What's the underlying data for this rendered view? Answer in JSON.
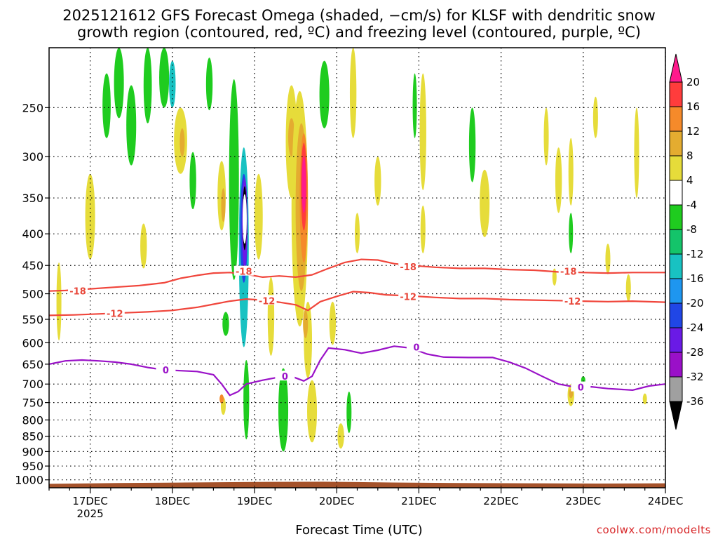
{
  "title": {
    "line1": "2025121612 GFS Forecast Omega (shaded, −cm/s) for KLSF with dendritic snow",
    "line2": "growth region (contoured, red, ºC) and freezing level (contoured, purple, ºC)"
  },
  "xlabel": "Forecast Time (UTC)",
  "credit": "coolwx.com/modelts",
  "chart_data": {
    "type": "heatmap",
    "x_axis": {
      "ticks": [
        {
          "label": "17DEC",
          "sublabel": "2025",
          "day": 17
        },
        {
          "label": "18DEC",
          "day": 18
        },
        {
          "label": "19DEC",
          "day": 19
        },
        {
          "label": "20DEC",
          "day": 20
        },
        {
          "label": "21DEC",
          "day": 21
        },
        {
          "label": "22DEC",
          "day": 22
        },
        {
          "label": "23DEC",
          "day": 23
        },
        {
          "label": "24DEC",
          "day": 24
        }
      ],
      "range_days": [
        16.5,
        24.0
      ]
    },
    "y_axis": {
      "label": "",
      "scale": "log-pressure",
      "inverted": true,
      "range_hpa": [
        200,
        1030
      ],
      "ticks": [
        250,
        300,
        350,
        400,
        450,
        500,
        550,
        600,
        650,
        700,
        750,
        800,
        850,
        900,
        950,
        1000
      ]
    },
    "colorbar": {
      "labels": [
        "20",
        "16",
        "12",
        "8",
        "4",
        "-4",
        "-8",
        "-12",
        "-16",
        "-20",
        "-24",
        "-28",
        "-32",
        "-36"
      ],
      "levels": [
        {
          "lo": 20,
          "hi": 24,
          "color": "#ff1a8c"
        },
        {
          "lo": 16,
          "hi": 20,
          "color": "#ff3c3c"
        },
        {
          "lo": 12,
          "hi": 16,
          "color": "#f58a2a"
        },
        {
          "lo": 8,
          "hi": 12,
          "color": "#e4ac30"
        },
        {
          "lo": 4,
          "hi": 8,
          "color": "#e6dc3a"
        },
        {
          "lo": -4,
          "hi": 4,
          "color": "#ffffff"
        },
        {
          "lo": -8,
          "hi": -4,
          "color": "#1fcc1f"
        },
        {
          "lo": -12,
          "hi": -8,
          "color": "#14c46a"
        },
        {
          "lo": -16,
          "hi": -12,
          "color": "#18c2c2"
        },
        {
          "lo": -20,
          "hi": -16,
          "color": "#1e96f0"
        },
        {
          "lo": -24,
          "hi": -20,
          "color": "#2046e6"
        },
        {
          "lo": -28,
          "hi": -24,
          "color": "#6a1ae6"
        },
        {
          "lo": -32,
          "hi": -28,
          "color": "#9a10c8"
        },
        {
          "lo": -36,
          "hi": -32,
          "color": "#a0a0a0"
        },
        {
          "lo": -40,
          "hi": -36,
          "color": "#000000"
        }
      ]
    },
    "omega_blobs": [
      {
        "x": 16.62,
        "p": 520,
        "w": 0.03,
        "h": 150,
        "color": "#e6dc3a"
      },
      {
        "x": 17.0,
        "p": 380,
        "w": 0.06,
        "h": 120,
        "color": "#e6dc3a"
      },
      {
        "x": 17.2,
        "p": 250,
        "w": 0.05,
        "h": 60,
        "color": "#1fcc1f"
      },
      {
        "x": 17.35,
        "p": 230,
        "w": 0.06,
        "h": 60,
        "color": "#1fcc1f"
      },
      {
        "x": 17.5,
        "p": 270,
        "w": 0.06,
        "h": 80,
        "color": "#1fcc1f"
      },
      {
        "x": 17.65,
        "p": 420,
        "w": 0.04,
        "h": 70,
        "color": "#e6dc3a"
      },
      {
        "x": 17.7,
        "p": 230,
        "w": 0.05,
        "h": 70,
        "color": "#1fcc1f"
      },
      {
        "x": 17.9,
        "p": 225,
        "w": 0.06,
        "h": 50,
        "color": "#1fcc1f"
      },
      {
        "x": 18.1,
        "p": 285,
        "w": 0.08,
        "h": 70,
        "color": "#e6dc3a"
      },
      {
        "x": 18.12,
        "p": 285,
        "w": 0.03,
        "h": 30,
        "color": "#e4ac30"
      },
      {
        "x": 18.0,
        "p": 230,
        "w": 0.04,
        "h": 40,
        "color": "#18c2c2"
      },
      {
        "x": 18.25,
        "p": 330,
        "w": 0.04,
        "h": 70,
        "color": "#1fcc1f"
      },
      {
        "x": 18.45,
        "p": 230,
        "w": 0.04,
        "h": 45,
        "color": "#1fcc1f"
      },
      {
        "x": 18.6,
        "p": 350,
        "w": 0.05,
        "h": 90,
        "color": "#e6dc3a"
      },
      {
        "x": 18.62,
        "p": 360,
        "w": 0.025,
        "h": 45,
        "color": "#e4ac30"
      },
      {
        "x": 18.65,
        "p": 560,
        "w": 0.04,
        "h": 50,
        "color": "#1fcc1f"
      },
      {
        "x": 18.62,
        "p": 760,
        "w": 0.03,
        "h": 50,
        "color": "#e6dc3a"
      },
      {
        "x": 18.6,
        "p": 740,
        "w": 0.015,
        "h": 25,
        "color": "#f58a2a"
      },
      {
        "x": 18.75,
        "p": 350,
        "w": 0.06,
        "h": 250,
        "color": "#1fcc1f"
      },
      {
        "x": 18.87,
        "p": 450,
        "w": 0.06,
        "h": 320,
        "color": "#18c2c2"
      },
      {
        "x": 18.87,
        "p": 400,
        "w": 0.045,
        "h": 160,
        "color": "#2046e6"
      },
      {
        "x": 18.88,
        "p": 390,
        "w": 0.035,
        "h": 130,
        "color": "#6a1ae6"
      },
      {
        "x": 18.88,
        "p": 380,
        "w": 0.02,
        "h": 90,
        "color": "#000000"
      },
      {
        "x": 18.88,
        "p": 380,
        "w": 0.008,
        "h": 70,
        "color": "#ffffff"
      },
      {
        "x": 18.9,
        "p": 750,
        "w": 0.035,
        "h": 220,
        "color": "#1fcc1f"
      },
      {
        "x": 19.05,
        "p": 380,
        "w": 0.05,
        "h": 120,
        "color": "#e6dc3a"
      },
      {
        "x": 19.2,
        "p": 550,
        "w": 0.04,
        "h": 160,
        "color": "#e6dc3a"
      },
      {
        "x": 19.35,
        "p": 780,
        "w": 0.06,
        "h": 240,
        "color": "#1fcc1f"
      },
      {
        "x": 19.45,
        "p": 290,
        "w": 0.07,
        "h": 120,
        "color": "#e6dc3a"
      },
      {
        "x": 19.45,
        "p": 280,
        "w": 0.04,
        "h": 40,
        "color": "#e4ac30"
      },
      {
        "x": 19.55,
        "p": 400,
        "w": 0.1,
        "h": 330,
        "color": "#e6dc3a"
      },
      {
        "x": 19.57,
        "p": 380,
        "w": 0.07,
        "h": 230,
        "color": "#e4ac30"
      },
      {
        "x": 19.6,
        "p": 360,
        "w": 0.05,
        "h": 170,
        "color": "#f58a2a"
      },
      {
        "x": 19.6,
        "p": 340,
        "w": 0.035,
        "h": 110,
        "color": "#ff3c3c"
      },
      {
        "x": 19.6,
        "p": 335,
        "w": 0.02,
        "h": 70,
        "color": "#ff1a8c"
      },
      {
        "x": 19.65,
        "p": 600,
        "w": 0.05,
        "h": 170,
        "color": "#e6dc3a"
      },
      {
        "x": 19.62,
        "p": 560,
        "w": 0.03,
        "h": 60,
        "color": "#e4ac30"
      },
      {
        "x": 19.7,
        "p": 780,
        "w": 0.06,
        "h": 180,
        "color": "#e6dc3a"
      },
      {
        "x": 19.85,
        "p": 240,
        "w": 0.06,
        "h": 60,
        "color": "#1fcc1f"
      },
      {
        "x": 19.95,
        "p": 560,
        "w": 0.04,
        "h": 90,
        "color": "#e6dc3a"
      },
      {
        "x": 20.05,
        "p": 850,
        "w": 0.04,
        "h": 80,
        "color": "#e6dc3a"
      },
      {
        "x": 20.2,
        "p": 240,
        "w": 0.04,
        "h": 80,
        "color": "#e6dc3a"
      },
      {
        "x": 20.25,
        "p": 400,
        "w": 0.03,
        "h": 60,
        "color": "#e6dc3a"
      },
      {
        "x": 20.15,
        "p": 780,
        "w": 0.03,
        "h": 120,
        "color": "#1fcc1f"
      },
      {
        "x": 20.5,
        "p": 330,
        "w": 0.04,
        "h": 60,
        "color": "#e6dc3a"
      },
      {
        "x": 21.05,
        "p": 280,
        "w": 0.04,
        "h": 120,
        "color": "#e6dc3a"
      },
      {
        "x": 21.05,
        "p": 395,
        "w": 0.03,
        "h": 70,
        "color": "#e6dc3a"
      },
      {
        "x": 20.95,
        "p": 250,
        "w": 0.02,
        "h": 60,
        "color": "#1fcc1f"
      },
      {
        "x": 21.65,
        "p": 290,
        "w": 0.04,
        "h": 80,
        "color": "#1fcc1f"
      },
      {
        "x": 21.8,
        "p": 360,
        "w": 0.06,
        "h": 90,
        "color": "#e6dc3a"
      },
      {
        "x": 22.55,
        "p": 280,
        "w": 0.03,
        "h": 60,
        "color": "#e6dc3a"
      },
      {
        "x": 22.7,
        "p": 330,
        "w": 0.04,
        "h": 80,
        "color": "#e6dc3a"
      },
      {
        "x": 22.65,
        "p": 470,
        "w": 0.02,
        "h": 30,
        "color": "#e6dc3a"
      },
      {
        "x": 22.85,
        "p": 320,
        "w": 0.03,
        "h": 80,
        "color": "#e6dc3a"
      },
      {
        "x": 22.85,
        "p": 400,
        "w": 0.02,
        "h": 60,
        "color": "#1fcc1f"
      },
      {
        "x": 22.85,
        "p": 730,
        "w": 0.04,
        "h": 60,
        "color": "#e6dc3a"
      },
      {
        "x": 22.85,
        "p": 725,
        "w": 0.02,
        "h": 25,
        "color": "#e4ac30"
      },
      {
        "x": 23.15,
        "p": 260,
        "w": 0.03,
        "h": 40,
        "color": "#e6dc3a"
      },
      {
        "x": 23.3,
        "p": 440,
        "w": 0.03,
        "h": 50,
        "color": "#e6dc3a"
      },
      {
        "x": 23.55,
        "p": 490,
        "w": 0.03,
        "h": 50,
        "color": "#e6dc3a"
      },
      {
        "x": 23.65,
        "p": 300,
        "w": 0.03,
        "h": 100,
        "color": "#e6dc3a"
      },
      {
        "x": 23.75,
        "p": 740,
        "w": 0.02,
        "h": 30,
        "color": "#e6dc3a"
      },
      {
        "x": 23.0,
        "p": 690,
        "w": 0.02,
        "h": 20,
        "color": "#1fcc1f"
      }
    ],
    "contours": [
      {
        "name": "-18",
        "color": "#f0463c",
        "points": [
          [
            16.5,
            495
          ],
          [
            16.7,
            494
          ],
          [
            17.0,
            491
          ],
          [
            17.3,
            488
          ],
          [
            17.6,
            485
          ],
          [
            17.9,
            480
          ],
          [
            18.1,
            472
          ],
          [
            18.3,
            467
          ],
          [
            18.5,
            463
          ],
          [
            18.7,
            462
          ],
          [
            18.9,
            465
          ],
          [
            19.1,
            470
          ],
          [
            19.3,
            468
          ],
          [
            19.5,
            470
          ],
          [
            19.7,
            466
          ],
          [
            19.9,
            455
          ],
          [
            20.1,
            445
          ],
          [
            20.3,
            440
          ],
          [
            20.5,
            441
          ],
          [
            20.7,
            447
          ],
          [
            20.9,
            450
          ],
          [
            21.2,
            453
          ],
          [
            21.5,
            455
          ],
          [
            21.8,
            455
          ],
          [
            22.1,
            457
          ],
          [
            22.4,
            458
          ],
          [
            22.7,
            461
          ],
          [
            23.0,
            462
          ],
          [
            23.3,
            463
          ],
          [
            23.6,
            462
          ],
          [
            24.0,
            462
          ]
        ]
      },
      {
        "name": "-12",
        "color": "#f0463c",
        "points": [
          [
            16.5,
            542
          ],
          [
            16.8,
            541
          ],
          [
            17.1,
            539
          ],
          [
            17.4,
            537
          ],
          [
            17.7,
            535
          ],
          [
            18.0,
            532
          ],
          [
            18.3,
            526
          ],
          [
            18.5,
            520
          ],
          [
            18.7,
            514
          ],
          [
            18.9,
            510
          ],
          [
            19.1,
            512
          ],
          [
            19.3,
            516
          ],
          [
            19.5,
            521
          ],
          [
            19.65,
            532
          ],
          [
            19.8,
            515
          ],
          [
            20.0,
            505
          ],
          [
            20.2,
            496
          ],
          [
            20.4,
            498
          ],
          [
            20.6,
            502
          ],
          [
            20.9,
            504
          ],
          [
            21.2,
            507
          ],
          [
            21.5,
            509
          ],
          [
            21.8,
            509
          ],
          [
            22.1,
            511
          ],
          [
            22.4,
            512
          ],
          [
            22.7,
            513
          ],
          [
            23.0,
            514
          ],
          [
            23.3,
            515
          ],
          [
            23.6,
            514
          ],
          [
            24.0,
            516
          ]
        ]
      },
      {
        "name": "0",
        "color": "#9a12c8",
        "points": [
          [
            16.5,
            650
          ],
          [
            16.7,
            642
          ],
          [
            16.9,
            640
          ],
          [
            17.1,
            642
          ],
          [
            17.3,
            645
          ],
          [
            17.5,
            650
          ],
          [
            17.7,
            658
          ],
          [
            17.9,
            664
          ],
          [
            18.1,
            666
          ],
          [
            18.3,
            668
          ],
          [
            18.5,
            676
          ],
          [
            18.6,
            700
          ],
          [
            18.7,
            730
          ],
          [
            18.8,
            720
          ],
          [
            18.9,
            700
          ],
          [
            19.1,
            690
          ],
          [
            19.3,
            682
          ],
          [
            19.45,
            680
          ],
          [
            19.6,
            692
          ],
          [
            19.7,
            680
          ],
          [
            19.8,
            640
          ],
          [
            19.9,
            612
          ],
          [
            20.1,
            616
          ],
          [
            20.3,
            624
          ],
          [
            20.5,
            617
          ],
          [
            20.7,
            608
          ],
          [
            20.9,
            612
          ],
          [
            21.1,
            626
          ],
          [
            21.3,
            633
          ],
          [
            21.6,
            634
          ],
          [
            21.9,
            634
          ],
          [
            22.1,
            645
          ],
          [
            22.3,
            660
          ],
          [
            22.5,
            680
          ],
          [
            22.7,
            700
          ],
          [
            22.9,
            708
          ],
          [
            23.1,
            707
          ],
          [
            23.3,
            712
          ],
          [
            23.6,
            716
          ],
          [
            23.8,
            705
          ],
          [
            24.0,
            700
          ]
        ]
      }
    ],
    "contour_labels": [
      {
        "text": "-18",
        "x": 16.85,
        "p": 495,
        "color": "red"
      },
      {
        "text": "-18",
        "x": 18.87,
        "p": 460,
        "color": "red"
      },
      {
        "text": "-18",
        "x": 20.87,
        "p": 452,
        "color": "red"
      },
      {
        "text": "-18",
        "x": 22.82,
        "p": 460,
        "color": "red"
      },
      {
        "text": "-12",
        "x": 17.3,
        "p": 538,
        "color": "red"
      },
      {
        "text": "-12",
        "x": 19.15,
        "p": 513,
        "color": "red"
      },
      {
        "text": "-12",
        "x": 20.87,
        "p": 505,
        "color": "red"
      },
      {
        "text": "-12",
        "x": 22.87,
        "p": 514,
        "color": "red"
      },
      {
        "text": "0",
        "x": 17.92,
        "p": 664,
        "color": "purple"
      },
      {
        "text": "0",
        "x": 19.37,
        "p": 680,
        "color": "purple"
      },
      {
        "text": "0",
        "x": 20.97,
        "p": 610,
        "color": "purple"
      },
      {
        "text": "0",
        "x": 22.97,
        "p": 708,
        "color": "purple"
      }
    ],
    "terrain": {
      "color": "#a5522a",
      "top_hpa": [
        1015,
        1012,
        1010,
        1008,
        1007,
        1010,
        1012,
        1013,
        1014,
        1013
      ]
    }
  }
}
